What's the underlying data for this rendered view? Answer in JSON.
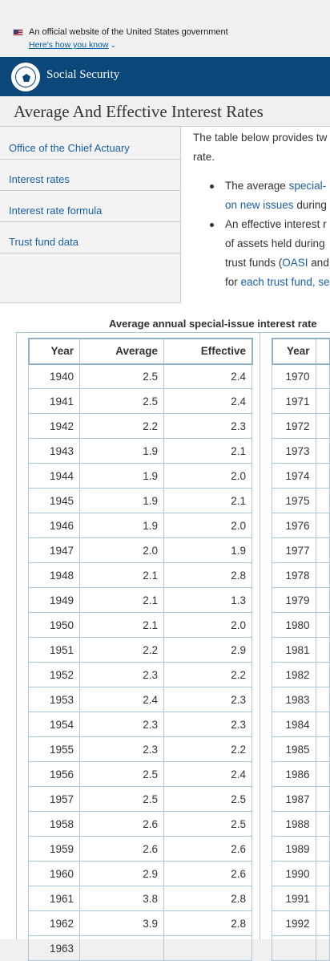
{
  "gov_banner": {
    "text": "An official website of the United States government",
    "link": "Here's how you know"
  },
  "header": {
    "brand": "Social Security"
  },
  "page_title": "Average And Effective Interest Rates",
  "sidebar": {
    "items": [
      {
        "label": "Office of the Chief Actuary"
      },
      {
        "label": "Interest rates"
      },
      {
        "label": "Interest rate formula"
      },
      {
        "label": "Trust fund data"
      }
    ]
  },
  "intro": {
    "line1": "The table below provides tw",
    "line2": "rate."
  },
  "bullets": {
    "b1_pre": "The average ",
    "b1_link": "special-",
    "b1_line2_link": "on new issues",
    "b1_line2_post": " during",
    "b2_line1": "An effective interest r",
    "b2_line2": "of assets held during",
    "b2_line3_pre": "trust funds (",
    "b2_line3_link": "OASI",
    "b2_line3_post": " and",
    "b2_line4_pre": "for ",
    "b2_line4_link": "each trust fund",
    "b2_line4_post": ", se"
  },
  "table": {
    "caption": "Average annual special-issue interest rate",
    "headers": [
      "Year",
      "Average",
      "Effective"
    ],
    "rows": [
      [
        "1940",
        "2.5",
        "2.4"
      ],
      [
        "1941",
        "2.5",
        "2.4"
      ],
      [
        "1942",
        "2.2",
        "2.3"
      ],
      [
        "1943",
        "1.9",
        "2.1"
      ],
      [
        "1944",
        "1.9",
        "2.0"
      ],
      [
        "1945",
        "1.9",
        "2.1"
      ],
      [
        "1946",
        "1.9",
        "2.0"
      ],
      [
        "1947",
        "2.0",
        "1.9"
      ],
      [
        "1948",
        "2.1",
        "2.8"
      ],
      [
        "1949",
        "2.1",
        "1.3"
      ],
      [
        "1950",
        "2.1",
        "2.0"
      ],
      [
        "1951",
        "2.2",
        "2.9"
      ],
      [
        "1952",
        "2.3",
        "2.2"
      ],
      [
        "1953",
        "2.4",
        "2.3"
      ],
      [
        "1954",
        "2.3",
        "2.3"
      ],
      [
        "1955",
        "2.3",
        "2.2"
      ],
      [
        "1956",
        "2.5",
        "2.4"
      ],
      [
        "1957",
        "2.5",
        "2.5"
      ],
      [
        "1958",
        "2.6",
        "2.5"
      ],
      [
        "1959",
        "2.6",
        "2.6"
      ],
      [
        "1960",
        "2.9",
        "2.6"
      ],
      [
        "1961",
        "3.8",
        "2.8"
      ],
      [
        "1962",
        "3.9",
        "2.8"
      ],
      [
        "1963",
        "",
        ""
      ]
    ],
    "right_header": "Year",
    "right_years": [
      "1970",
      "1971",
      "1972",
      "1973",
      "1974",
      "1975",
      "1976",
      "1977",
      "1978",
      "1979",
      "1980",
      "1981",
      "1982",
      "1983",
      "1984",
      "1985",
      "1986",
      "1987",
      "1988",
      "1989",
      "1990",
      "1991",
      "1992",
      ""
    ]
  }
}
